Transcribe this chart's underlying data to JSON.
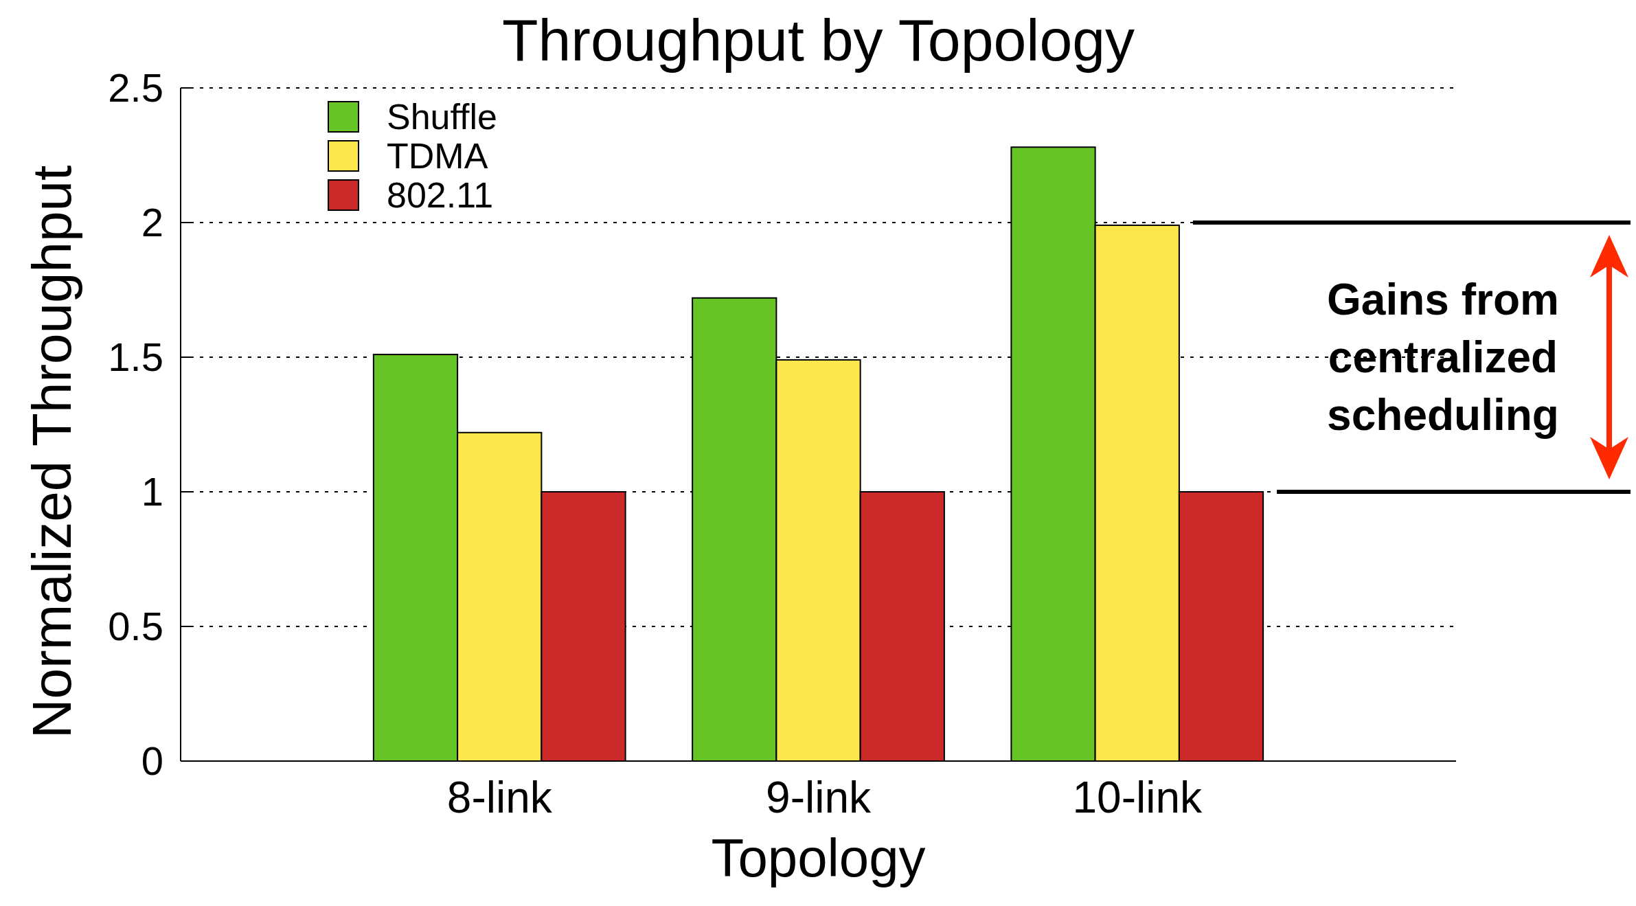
{
  "chart_data": {
    "type": "bar",
    "title": "Throughput by Topology",
    "xlabel": "Topology",
    "ylabel": "Normalized Throughput",
    "categories": [
      "8-link",
      "9-link",
      "10-link"
    ],
    "series": [
      {
        "name": "Shuffle",
        "color": "#66c424",
        "values": [
          1.51,
          1.72,
          2.28
        ]
      },
      {
        "name": "TDMA",
        "color": "#fde74c",
        "values": [
          1.22,
          1.49,
          1.99
        ]
      },
      {
        "name": "802.11",
        "color": "#cc2929",
        "values": [
          1,
          1,
          1
        ]
      }
    ],
    "ylim": [
      0,
      2.5
    ],
    "yticks": [
      0,
      0.5,
      1,
      1.5,
      2,
      2.5
    ],
    "grid": "y",
    "legend": "top left",
    "ref_lines": [
      {
        "axis": "y",
        "value": 2,
        "color": "#000000"
      },
      {
        "axis": "y",
        "value": 1,
        "color": "#000000"
      }
    ],
    "annotations": [
      "Gains from\ncentralized\nscheduling"
    ]
  }
}
